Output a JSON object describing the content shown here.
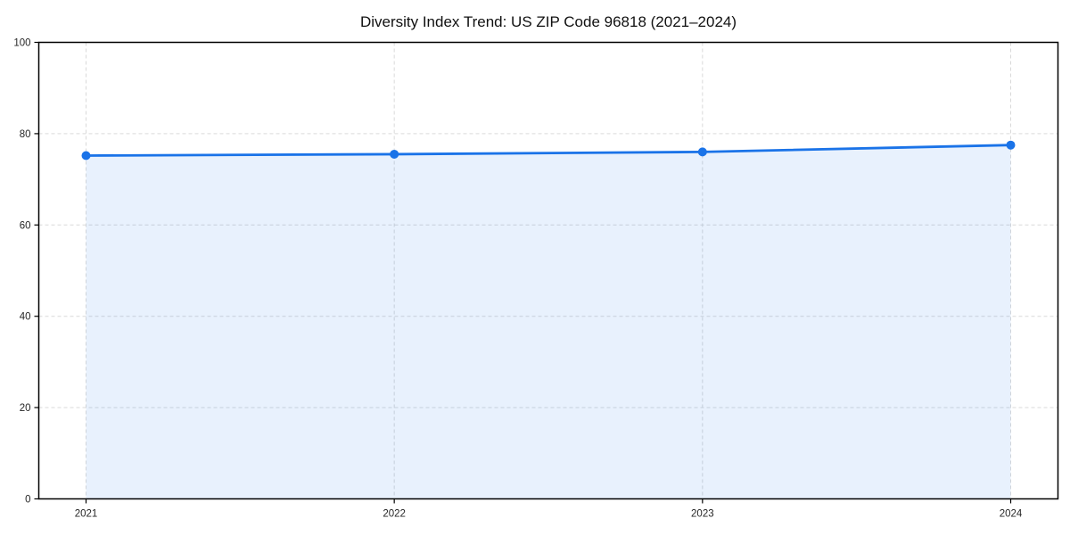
{
  "chart_data": {
    "type": "line",
    "title": "Diversity Index Trend: US ZIP Code 96818 (2021–2024)",
    "x": [
      2021,
      2022,
      2023,
      2024
    ],
    "xtick_labels": [
      "2021",
      "2022",
      "2023",
      "2024"
    ],
    "series": [
      {
        "name": "Diversity Index",
        "values": [
          75.2,
          75.5,
          76.0,
          77.5
        ]
      }
    ],
    "xlabel": "",
    "ylabel": "",
    "ylim": [
      0,
      100
    ],
    "yticks": [
      0,
      20,
      40,
      60,
      80,
      100
    ],
    "grid": true,
    "grid_style": "dashed",
    "area_fill": true,
    "markers": true,
    "legend_position": "none",
    "colors": {
      "line": "#1a73e8",
      "marker": "#1a73e8",
      "area": "#1a73e8",
      "area_opacity": 0.1,
      "grid": "#d9d9d9",
      "spine": "#000000",
      "tick_label": "#262626",
      "title": "#111111",
      "background": "#ffffff"
    }
  }
}
